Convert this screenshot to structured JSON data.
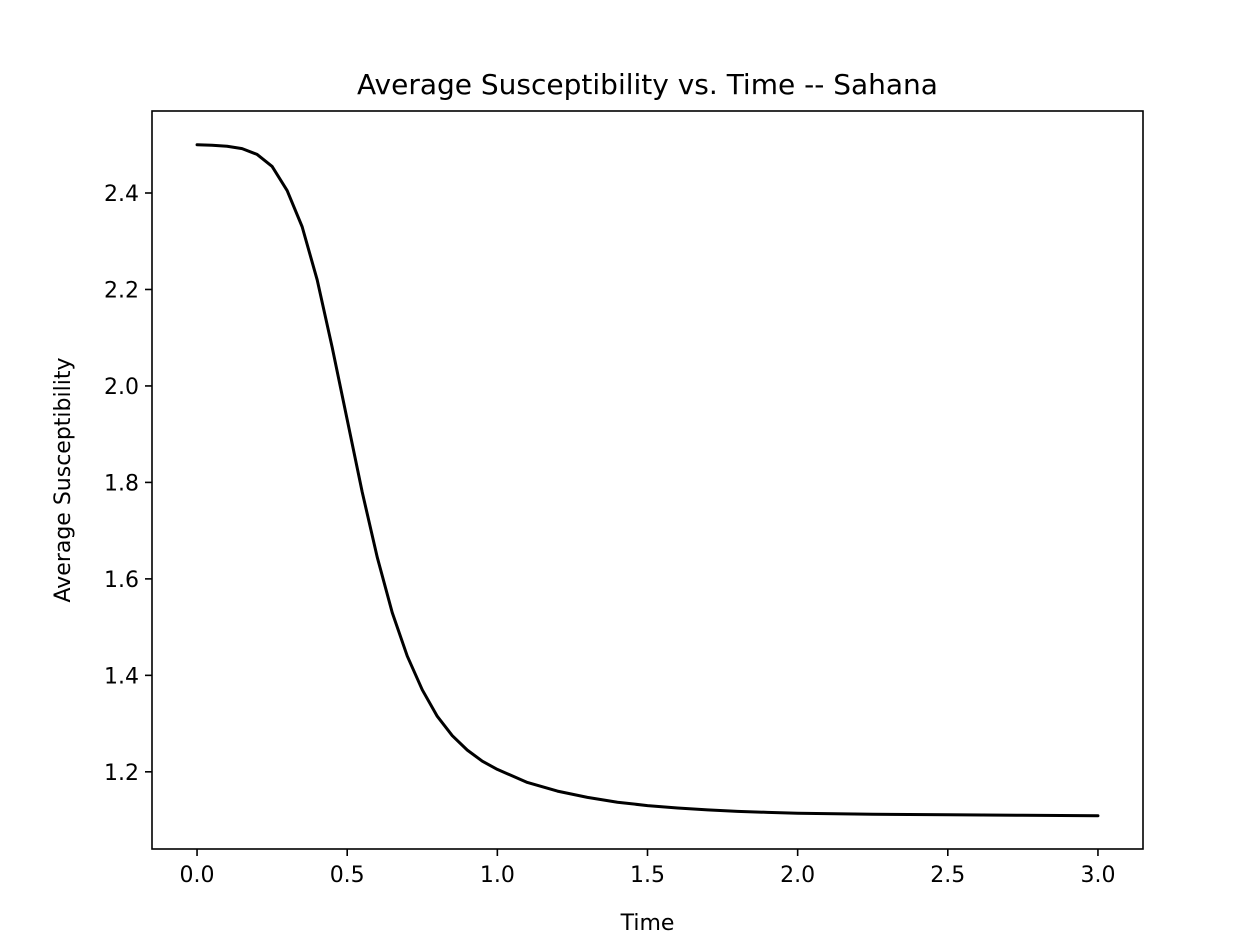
{
  "chart_data": {
    "type": "line",
    "title": "Average Susceptibility vs. Time -- Sahana",
    "xlabel": "Time",
    "ylabel": "Average Susceptibility",
    "xlim": [
      -0.15,
      3.15
    ],
    "ylim": [
      1.04,
      2.57
    ],
    "xticks": [
      0.0,
      0.5,
      1.0,
      1.5,
      2.0,
      2.5,
      3.0
    ],
    "xtick_labels": [
      "0.0",
      "0.5",
      "1.0",
      "1.5",
      "2.0",
      "2.5",
      "3.0"
    ],
    "yticks": [
      1.2,
      1.4,
      1.6,
      1.8,
      2.0,
      2.2,
      2.4
    ],
    "ytick_labels": [
      "1.2",
      "1.4",
      "1.6",
      "1.8",
      "2.0",
      "2.2",
      "2.4"
    ],
    "grid": false,
    "legend": "none",
    "line_color": "#000000",
    "series": [
      {
        "x": [
          0.0,
          0.05,
          0.1,
          0.15,
          0.2,
          0.25,
          0.3,
          0.35,
          0.4,
          0.45,
          0.5,
          0.55,
          0.6,
          0.65,
          0.7,
          0.75,
          0.8,
          0.85,
          0.9,
          0.95,
          1.0,
          1.1,
          1.2,
          1.3,
          1.4,
          1.5,
          1.6,
          1.7,
          1.8,
          1.9,
          2.0,
          2.25,
          2.5,
          2.75,
          3.0
        ],
        "y": [
          2.5,
          2.499,
          2.497,
          2.492,
          2.48,
          2.455,
          2.405,
          2.33,
          2.22,
          2.08,
          1.93,
          1.78,
          1.645,
          1.53,
          1.44,
          1.37,
          1.315,
          1.275,
          1.245,
          1.222,
          1.205,
          1.178,
          1.16,
          1.147,
          1.137,
          1.13,
          1.125,
          1.121,
          1.118,
          1.116,
          1.114,
          1.112,
          1.111,
          1.11,
          1.109
        ]
      }
    ]
  }
}
